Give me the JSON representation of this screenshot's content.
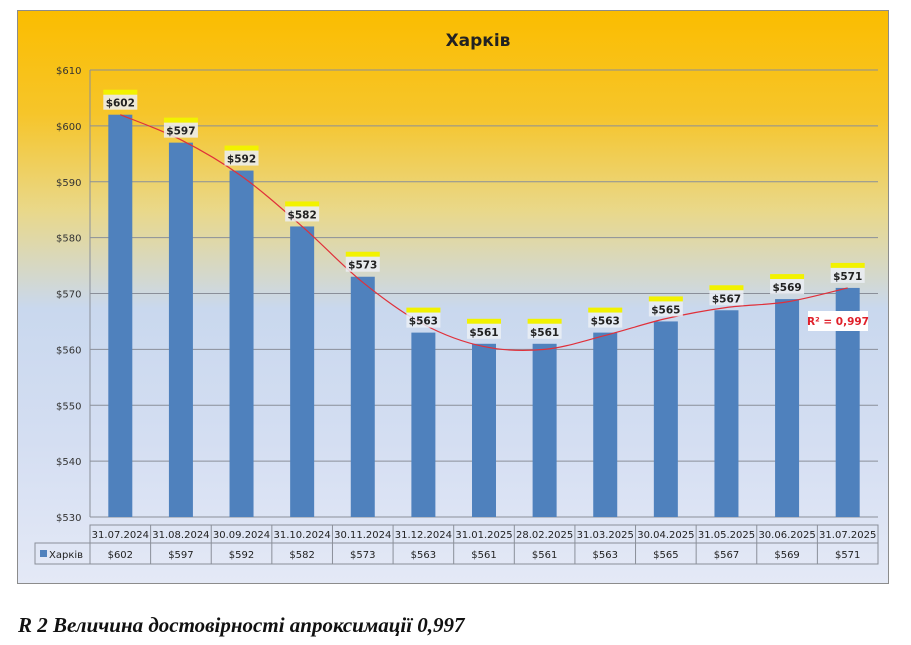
{
  "chart_data": {
    "type": "bar",
    "title": "Харків",
    "series": [
      {
        "name": "Харків",
        "values": [
          602,
          597,
          592,
          582,
          573,
          563,
          561,
          561,
          563,
          565,
          567,
          569,
          571
        ]
      }
    ],
    "categories": [
      "31.07.2024",
      "31.08.2024",
      "30.09.2024",
      "31.10.2024",
      "30.11.2024",
      "31.12.2024",
      "31.01.2025",
      "28.02.2025",
      "31.03.2025",
      "30.04.2025",
      "31.05.2025",
      "30.06.2025",
      "31.07.2025"
    ],
    "data_labels": [
      "$602",
      "$597",
      "$592",
      "$582",
      "$573",
      "$563",
      "$561",
      "$561",
      "$563",
      "$565",
      "$567",
      "$569",
      "$571"
    ],
    "yticks": [
      "$530",
      "$540",
      "$550",
      "$560",
      "$570",
      "$580",
      "$590",
      "$600",
      "$610"
    ],
    "ylim": [
      530,
      610
    ],
    "grid": true,
    "legend": "data-table",
    "trendline": {
      "type": "polynomial",
      "r2_label": "R² = 0,997"
    },
    "colors": {
      "bar": "#4f81bd",
      "trend": "#e0303a",
      "label_highlight": "#f2f200"
    }
  },
  "caption": "R 2 Величина достовірності апроксимації 0,997"
}
